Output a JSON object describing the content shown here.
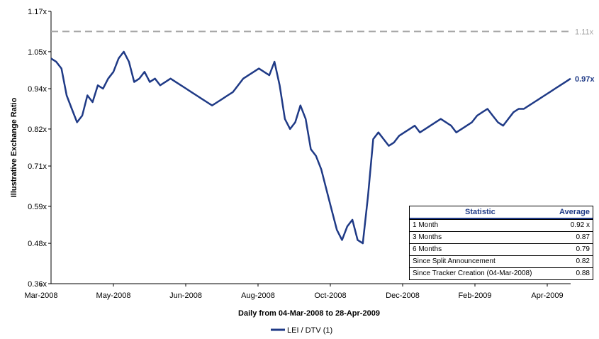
{
  "chart_data": {
    "type": "line",
    "title": "",
    "ylabel": "Illustrative Exchange Ratio",
    "xlabel": "Daily from 04-Mar-2008 to 28-Apr-2009",
    "ylim": [
      0.36,
      1.17
    ],
    "y_ticks": [
      {
        "value": 0.36,
        "label": "0.36x"
      },
      {
        "value": 0.48,
        "label": "0.48x"
      },
      {
        "value": 0.59,
        "label": "0.59x"
      },
      {
        "value": 0.71,
        "label": "0.71x"
      },
      {
        "value": 0.82,
        "label": "0.82x"
      },
      {
        "value": 0.94,
        "label": "0.94x"
      },
      {
        "value": 1.05,
        "label": "1.05x"
      },
      {
        "value": 1.17,
        "label": "1.17x"
      }
    ],
    "x_ticks": [
      "Mar-2008",
      "May-2008",
      "Jun-2008",
      "Aug-2008",
      "Oct-2008",
      "Dec-2008",
      "Feb-2009",
      "Apr-2009"
    ],
    "series": [
      {
        "name": "LEI / DTV  (1)",
        "color": "#1f3a86",
        "end_label": "0.97x",
        "x": [
          0,
          1,
          2,
          3,
          4,
          5,
          6,
          7,
          8,
          9,
          10,
          11,
          12,
          13,
          14,
          15,
          16,
          17,
          18,
          19,
          20,
          21,
          22,
          23,
          24,
          25,
          26,
          27,
          28,
          29,
          30,
          31,
          32,
          33,
          34,
          35,
          36,
          37,
          38,
          39,
          40,
          41,
          42,
          43,
          44,
          45,
          46,
          47,
          48,
          49,
          50,
          51,
          52,
          53,
          54,
          55,
          56,
          57,
          58,
          59,
          60,
          61,
          62,
          63,
          64,
          65,
          66,
          67,
          68,
          69,
          70,
          71,
          72,
          73,
          74,
          75,
          76,
          77,
          78,
          79,
          80,
          81,
          82,
          83,
          84,
          85,
          86,
          87,
          88,
          89,
          90,
          91,
          92,
          93,
          94,
          95,
          96,
          97,
          98,
          99,
          100
        ],
        "values": [
          1.03,
          1.02,
          1.0,
          0.92,
          0.88,
          0.84,
          0.86,
          0.92,
          0.9,
          0.95,
          0.94,
          0.97,
          0.99,
          1.03,
          1.05,
          1.02,
          0.96,
          0.97,
          0.99,
          0.96,
          0.97,
          0.95,
          0.96,
          0.97,
          0.96,
          0.95,
          0.94,
          0.93,
          0.92,
          0.91,
          0.9,
          0.89,
          0.9,
          0.91,
          0.92,
          0.93,
          0.95,
          0.97,
          0.98,
          0.99,
          1.0,
          0.99,
          0.98,
          1.02,
          0.95,
          0.85,
          0.82,
          0.84,
          0.89,
          0.85,
          0.76,
          0.74,
          0.7,
          0.64,
          0.58,
          0.52,
          0.49,
          0.53,
          0.55,
          0.49,
          0.48,
          0.62,
          0.79,
          0.81,
          0.79,
          0.77,
          0.78,
          0.8,
          0.81,
          0.82,
          0.83,
          0.81,
          0.82,
          0.83,
          0.84,
          0.85,
          0.84,
          0.83,
          0.81,
          0.82,
          0.83,
          0.84,
          0.86,
          0.87,
          0.88,
          0.86,
          0.84,
          0.83,
          0.85,
          0.87,
          0.88,
          0.88,
          0.89,
          0.9,
          0.91,
          0.92,
          0.93,
          0.94,
          0.95,
          0.96,
          0.97
        ]
      },
      {
        "name": "",
        "style": "dashed",
        "color": "#a6a6a6",
        "end_label": "1.11x",
        "x": [
          0,
          100
        ],
        "values": [
          1.11,
          1.11
        ]
      }
    ],
    "legend": {
      "placement": "bottom-center"
    }
  },
  "stats_table": {
    "headers": {
      "statistic": "Statistic",
      "average": "Average"
    },
    "rows": [
      {
        "label": "1 Month",
        "value": "0.92 x"
      },
      {
        "label": "3 Months",
        "value": "0.87"
      },
      {
        "label": "6 Months",
        "value": "0.79"
      },
      {
        "label": "Since Split Announcement",
        "value": "0.82"
      },
      {
        "label": "Since Tracker Creation (04-Mar-2008)",
        "value": "0.88"
      }
    ]
  }
}
